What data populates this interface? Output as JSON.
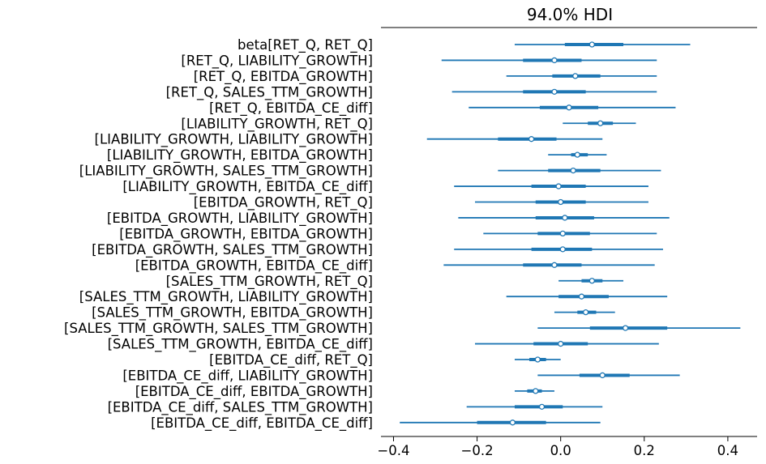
{
  "chart_data": {
    "type": "forest",
    "title": "94.0% HDI",
    "xlim": [
      -0.43,
      0.47
    ],
    "xticks": [
      -0.4,
      -0.2,
      0.0,
      0.2,
      0.4
    ],
    "xtick_labels": [
      "−0.4",
      "−0.2",
      "0.0",
      "0.2",
      "0.4"
    ],
    "color": "#1f77b4",
    "rows": [
      {
        "label": "beta[RET_Q, RET_Q]",
        "hdi_low": -0.11,
        "q_low": 0.01,
        "mean": 0.075,
        "q_high": 0.15,
        "hdi_high": 0.31
      },
      {
        "label": "[RET_Q, LIABILITY_GROWTH]",
        "hdi_low": -0.285,
        "q_low": -0.09,
        "mean": -0.015,
        "q_high": 0.05,
        "hdi_high": 0.23
      },
      {
        "label": "[RET_Q, EBITDA_GROWTH]",
        "hdi_low": -0.13,
        "q_low": -0.02,
        "mean": 0.035,
        "q_high": 0.095,
        "hdi_high": 0.23
      },
      {
        "label": "[RET_Q, SALES_TTM_GROWTH]",
        "hdi_low": -0.26,
        "q_low": -0.09,
        "mean": -0.015,
        "q_high": 0.06,
        "hdi_high": 0.23
      },
      {
        "label": "[RET_Q, EBITDA_CE_diff]",
        "hdi_low": -0.22,
        "q_low": -0.05,
        "mean": 0.02,
        "q_high": 0.09,
        "hdi_high": 0.275
      },
      {
        "label": "[LIABILITY_GROWTH, RET_Q]",
        "hdi_low": 0.005,
        "q_low": 0.065,
        "mean": 0.095,
        "q_high": 0.125,
        "hdi_high": 0.18
      },
      {
        "label": "[LIABILITY_GROWTH, LIABILITY_GROWTH]",
        "hdi_low": -0.32,
        "q_low": -0.15,
        "mean": -0.07,
        "q_high": -0.01,
        "hdi_high": 0.1
      },
      {
        "label": "[LIABILITY_GROWTH, EBITDA_GROWTH]",
        "hdi_low": -0.03,
        "q_low": 0.025,
        "mean": 0.04,
        "q_high": 0.065,
        "hdi_high": 0.11
      },
      {
        "label": "[LIABILITY_GROWTH, SALES_TTM_GROWTH]",
        "hdi_low": -0.15,
        "q_low": -0.03,
        "mean": 0.03,
        "q_high": 0.095,
        "hdi_high": 0.24
      },
      {
        "label": "[LIABILITY_GROWTH, EBITDA_CE_diff]",
        "hdi_low": -0.255,
        "q_low": -0.07,
        "mean": -0.005,
        "q_high": 0.06,
        "hdi_high": 0.21
      },
      {
        "label": "[EBITDA_GROWTH, RET_Q]",
        "hdi_low": -0.205,
        "q_low": -0.06,
        "mean": 0.0,
        "q_high": 0.06,
        "hdi_high": 0.21
      },
      {
        "label": "[EBITDA_GROWTH, LIABILITY_GROWTH]",
        "hdi_low": -0.245,
        "q_low": -0.06,
        "mean": 0.01,
        "q_high": 0.08,
        "hdi_high": 0.26
      },
      {
        "label": "[EBITDA_GROWTH, EBITDA_GROWTH]",
        "hdi_low": -0.185,
        "q_low": -0.055,
        "mean": 0.005,
        "q_high": 0.07,
        "hdi_high": 0.23
      },
      {
        "label": "[EBITDA_GROWTH, SALES_TTM_GROWTH]",
        "hdi_low": -0.255,
        "q_low": -0.07,
        "mean": 0.005,
        "q_high": 0.075,
        "hdi_high": 0.245
      },
      {
        "label": "[EBITDA_GROWTH, EBITDA_CE_diff]",
        "hdi_low": -0.28,
        "q_low": -0.09,
        "mean": -0.015,
        "q_high": 0.05,
        "hdi_high": 0.225
      },
      {
        "label": "[SALES_TTM_GROWTH, RET_Q]",
        "hdi_low": -0.005,
        "q_low": 0.05,
        "mean": 0.075,
        "q_high": 0.1,
        "hdi_high": 0.15
      },
      {
        "label": "[SALES_TTM_GROWTH, LIABILITY_GROWTH]",
        "hdi_low": -0.13,
        "q_low": -0.005,
        "mean": 0.05,
        "q_high": 0.115,
        "hdi_high": 0.255
      },
      {
        "label": "[SALES_TTM_GROWTH, EBITDA_GROWTH]",
        "hdi_low": -0.015,
        "q_low": 0.04,
        "mean": 0.06,
        "q_high": 0.085,
        "hdi_high": 0.13
      },
      {
        "label": "[SALES_TTM_GROWTH, SALES_TTM_GROWTH]",
        "hdi_low": -0.055,
        "q_low": 0.07,
        "mean": 0.155,
        "q_high": 0.255,
        "hdi_high": 0.43
      },
      {
        "label": "[SALES_TTM_GROWTH, EBITDA_CE_diff]",
        "hdi_low": -0.205,
        "q_low": -0.065,
        "mean": 0.0,
        "q_high": 0.065,
        "hdi_high": 0.235
      },
      {
        "label": "[EBITDA_CE_diff, RET_Q]",
        "hdi_low": -0.11,
        "q_low": -0.075,
        "mean": -0.055,
        "q_high": -0.035,
        "hdi_high": 0.0
      },
      {
        "label": "[EBITDA_CE_diff, LIABILITY_GROWTH]",
        "hdi_low": -0.055,
        "q_low": 0.045,
        "mean": 0.1,
        "q_high": 0.165,
        "hdi_high": 0.285
      },
      {
        "label": "[EBITDA_CE_diff, EBITDA_GROWTH]",
        "hdi_low": -0.11,
        "q_low": -0.08,
        "mean": -0.06,
        "q_high": -0.045,
        "hdi_high": -0.015
      },
      {
        "label": "[EBITDA_CE_diff, SALES_TTM_GROWTH]",
        "hdi_low": -0.225,
        "q_low": -0.11,
        "mean": -0.045,
        "q_high": 0.005,
        "hdi_high": 0.1
      },
      {
        "label": "[EBITDA_CE_diff, EBITDA_CE_diff]",
        "hdi_low": -0.385,
        "q_low": -0.2,
        "mean": -0.115,
        "q_high": -0.035,
        "hdi_high": 0.095
      }
    ]
  }
}
